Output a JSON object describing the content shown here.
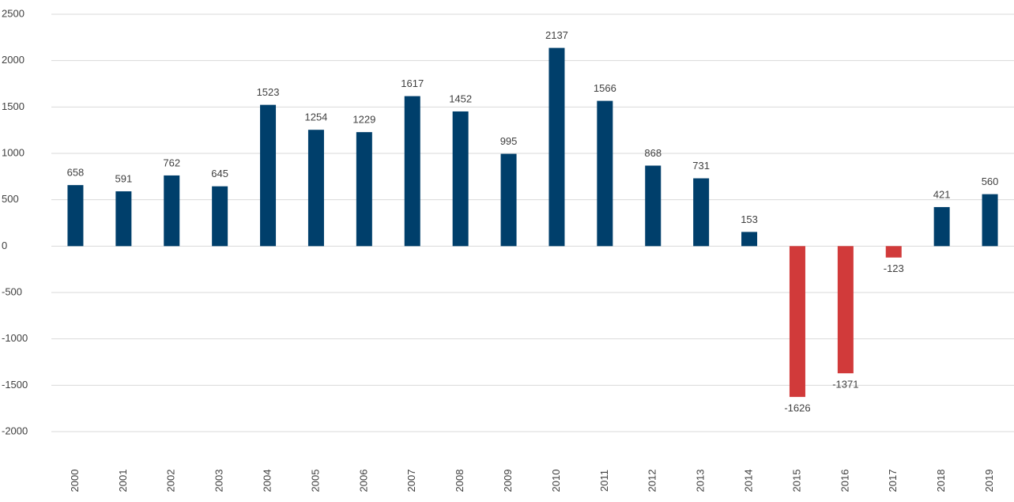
{
  "chart_data": {
    "type": "bar",
    "categories": [
      "2000",
      "2001",
      "2002",
      "2003",
      "2004",
      "2005",
      "2006",
      "2007",
      "2008",
      "2009",
      "2010",
      "2011",
      "2012",
      "2013",
      "2014",
      "2015",
      "2016",
      "2017",
      "2018",
      "2019"
    ],
    "values": [
      658,
      591,
      762,
      645,
      1523,
      1254,
      1229,
      1617,
      1452,
      995,
      2137,
      1566,
      868,
      731,
      153,
      -1626,
      -1371,
      -123,
      421,
      560
    ],
    "color": "#003f6b",
    "negative_color": "#d13a3a",
    "ylim": [
      -2000,
      2500
    ],
    "yticks": [
      -2000,
      -1500,
      -1000,
      -500,
      0,
      500,
      1000,
      1500,
      2000,
      2500
    ],
    "grid": true
  }
}
